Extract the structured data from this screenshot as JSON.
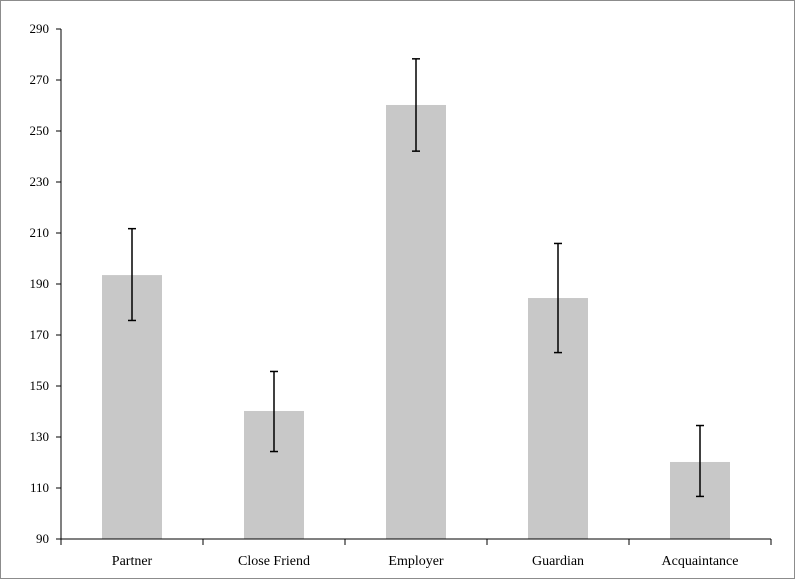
{
  "chart_data": {
    "type": "bar",
    "categories": [
      "Partner",
      "Close Friend",
      "Employer",
      "Guardian",
      "Acquaintance"
    ],
    "values": [
      193.5,
      140.2,
      260.2,
      184.5,
      120.2
    ],
    "error_bars": {
      "upper": [
        211.7,
        155.7,
        278.3,
        205.9,
        134.5
      ],
      "lower": [
        175.7,
        124.3,
        242.1,
        163.1,
        106.7
      ]
    },
    "ylim": [
      90,
      290
    ],
    "yticks": [
      90,
      110,
      130,
      150,
      170,
      190,
      210,
      230,
      250,
      270,
      290
    ],
    "bar_color": "#c8c8c8",
    "error_bar_color": "#000000",
    "grid": false,
    "legend": "none"
  }
}
